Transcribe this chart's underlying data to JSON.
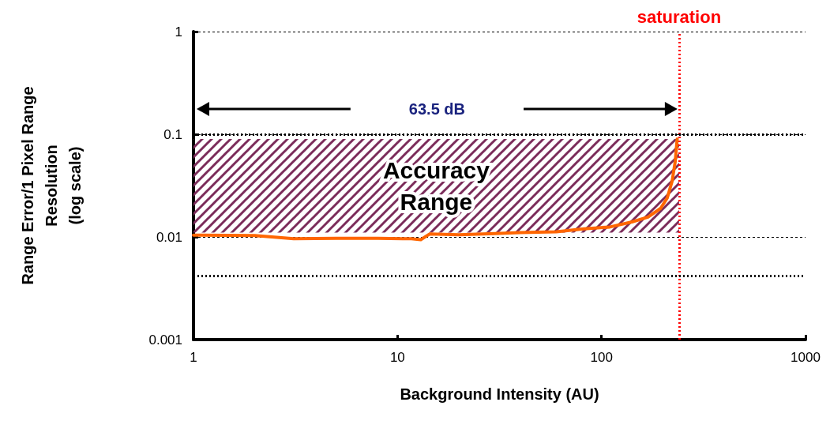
{
  "chart_data": {
    "type": "line",
    "xlabel": "Background Intensity (AU)",
    "ylabel": "Range Error/1 Pixel Range\nResolution\n(log scale)",
    "log": "xy",
    "xlim": [
      1,
      1000
    ],
    "xticks": [
      1,
      10,
      100,
      1000
    ],
    "ylim": [
      0.001,
      1
    ],
    "yticks": [
      0.001,
      0.01,
      0.1,
      1
    ],
    "grid": "y",
    "marker": "none",
    "line_style": "solid",
    "series": [
      {
        "color": "#ff6600",
        "x": [
          1,
          2,
          3.1,
          5,
          8,
          11.7,
          13,
          14.4,
          20,
          30,
          40,
          60,
          82,
          110,
          141,
          169,
          195,
          210,
          222,
          230,
          235
        ],
        "values": [
          0.0104,
          0.0103,
          0.0096,
          0.0097,
          0.0097,
          0.0096,
          0.0094,
          0.0107,
          0.0105,
          0.0108,
          0.011,
          0.0112,
          0.012,
          0.0125,
          0.014,
          0.0156,
          0.019,
          0.024,
          0.035,
          0.055,
          0.09
        ]
      }
    ],
    "ref_lines": [
      {
        "axis": "x",
        "value": 240,
        "label": "saturation",
        "color": "#ff0000",
        "line_style": "dotted"
      },
      {
        "axis": "y",
        "value": 0.1,
        "label": null,
        "color": "#000000",
        "line_style": "dotted"
      },
      {
        "axis": "y",
        "value": 0.0042,
        "label": null,
        "color": "#000000",
        "line_style": "dotted"
      }
    ],
    "bands": [
      {
        "axis": "y",
        "from": 0.011,
        "to": 0.09,
        "label": "Accuracy\nRange",
        "color": "#7b2c5a"
      }
    ],
    "annotations": [
      "63.5 dB"
    ]
  }
}
